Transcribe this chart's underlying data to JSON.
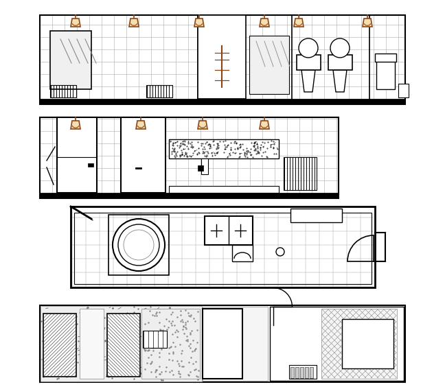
{
  "bg_color": "#ffffff",
  "line_color": "#000000",
  "brown_color": "#8B4513",
  "tile_line_color": "#aaaaaa"
}
